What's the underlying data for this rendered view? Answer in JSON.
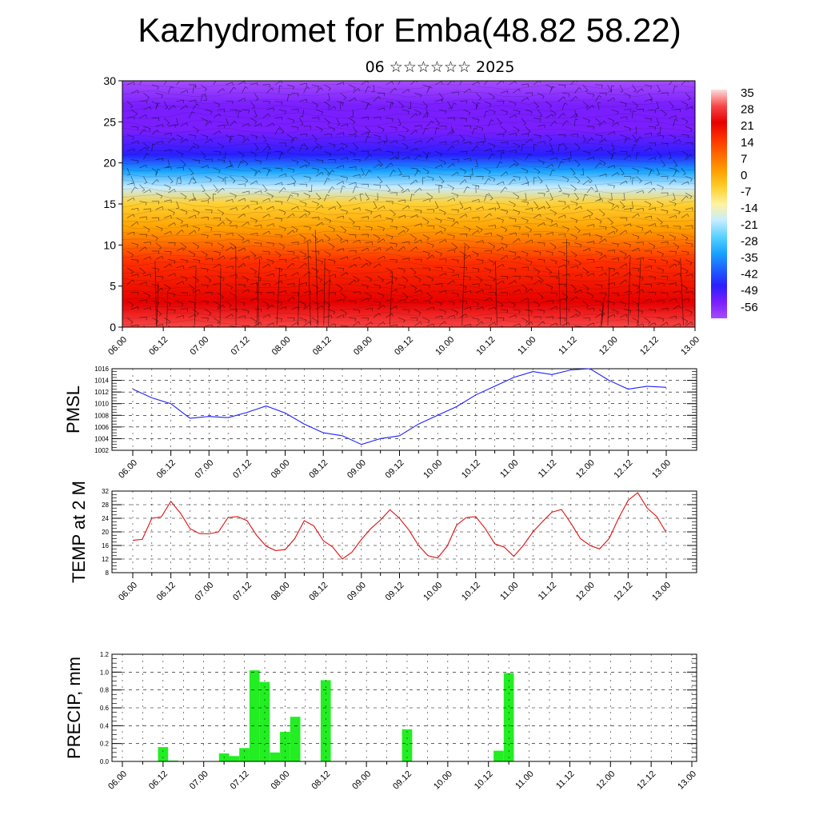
{
  "title": "Kazhydromet for Emba(48.82 58.22)",
  "subtitle": "06 ☆☆☆☆☆☆ 2025",
  "time_labels": [
    "06.00",
    "06.12",
    "07.00",
    "07.12",
    "08.00",
    "08.12",
    "09.00",
    "09.12",
    "10.00",
    "10.12",
    "11.00",
    "11.12",
    "12.00",
    "12.12",
    "13.00"
  ],
  "colors": {
    "pmsl_line": "#1f1fff",
    "temp_line": "#e01010",
    "precip_bar": "#22ee22"
  },
  "chart_data": [
    {
      "type": "heatmap",
      "title": "",
      "ylabel": "",
      "ylim": [
        0,
        30
      ],
      "y_ticks": [
        0,
        5,
        10,
        15,
        20,
        25,
        30
      ],
      "x_tick_labels": [
        "06.00",
        "06.12",
        "07.00",
        "07.12",
        "08.00",
        "08.12",
        "09.00",
        "09.12",
        "10.00",
        "10.12",
        "11.00",
        "11.12",
        "12.00",
        "12.12",
        "13.00"
      ],
      "colorbar": {
        "labels": [
          "35",
          "28",
          "21",
          "14",
          "7",
          "0",
          "-7",
          "-14",
          "-21",
          "-28",
          "-35",
          "-42",
          "-49",
          "-56"
        ],
        "colors": [
          "#fcdede",
          "#f84848",
          "#e60000",
          "#ff3000",
          "#ff6a00",
          "#ffa000",
          "#ffd030",
          "#fff3a0",
          "#c8ecff",
          "#58d2ff",
          "#18a4ff",
          "#1e60ff",
          "#2a1eff",
          "#7a1eff",
          "#a64cff"
        ]
      },
      "profile": [
        {
          "level": 0,
          "value": 33
        },
        {
          "level": 3,
          "value": 26
        },
        {
          "level": 8,
          "value": 14
        },
        {
          "level": 12,
          "value": 5
        },
        {
          "level": 15,
          "value": -8
        },
        {
          "level": 17,
          "value": -20
        },
        {
          "level": 19,
          "value": -32
        },
        {
          "level": 21,
          "value": -45
        },
        {
          "level": 24,
          "value": -58
        },
        {
          "level": 27,
          "value": -56
        },
        {
          "level": 30,
          "value": -60
        }
      ]
    },
    {
      "type": "line",
      "ylabel": "PMSL",
      "ylim": [
        1002,
        1016
      ],
      "y_ticks": [
        1002,
        1004,
        1006,
        1008,
        1010,
        1012,
        1014,
        1016
      ],
      "x_tick_labels": [
        "06.00",
        "06.12",
        "07.00",
        "07.12",
        "08.00",
        "08.12",
        "09.00",
        "09.12",
        "10.00",
        "10.12",
        "11.00",
        "11.12",
        "12.00",
        "12.12",
        "13.00"
      ],
      "x_range": [
        0,
        168
      ],
      "series": [
        {
          "x": [
            0,
            6,
            12,
            18,
            24,
            30,
            36,
            42,
            48,
            54,
            60,
            66,
            72,
            78,
            84,
            90,
            96,
            102,
            108,
            114,
            120,
            126,
            132,
            138,
            144,
            150,
            156,
            162,
            168
          ],
          "values": [
            1012.5,
            1011,
            1010,
            1007.5,
            1007.8,
            1007.6,
            1008.5,
            1009.6,
            1008.4,
            1006.5,
            1005,
            1004.5,
            1003,
            1004,
            1004.5,
            1006.5,
            1008,
            1009.5,
            1011.5,
            1013,
            1014.5,
            1015.5,
            1015,
            1015.8,
            1016,
            1014,
            1012.5,
            1013,
            1012.8
          ]
        }
      ]
    },
    {
      "type": "line",
      "ylabel": "TEMP at 2 M",
      "ylim": [
        8,
        32
      ],
      "y_ticks": [
        8,
        12,
        16,
        20,
        24,
        28,
        32
      ],
      "x_tick_labels": [
        "06.00",
        "06.12",
        "07.00",
        "07.12",
        "08.00",
        "08.12",
        "09.00",
        "09.12",
        "10.00",
        "10.12",
        "11.00",
        "11.12",
        "12.00",
        "12.12",
        "13.00"
      ],
      "x_range": [
        0,
        168
      ],
      "series": [
        {
          "x": [
            0,
            3,
            6,
            9,
            12,
            15,
            18,
            21,
            24,
            27,
            30,
            33,
            36,
            39,
            42,
            45,
            48,
            51,
            54,
            57,
            60,
            63,
            66,
            69,
            72,
            75,
            78,
            81,
            84,
            87,
            90,
            93,
            96,
            99,
            102,
            105,
            108,
            111,
            114,
            117,
            120,
            123,
            126,
            129,
            132,
            135,
            138,
            141,
            144,
            147,
            150,
            153,
            156,
            159,
            162,
            165,
            168
          ],
          "values": [
            17.5,
            17.8,
            24,
            24.4,
            29,
            25.5,
            21,
            19.5,
            19.4,
            20,
            24.2,
            24.5,
            23.3,
            19,
            15.8,
            14.5,
            14.8,
            18,
            23.3,
            21.8,
            17.4,
            15.5,
            12,
            14,
            17.8,
            21,
            23.5,
            26.5,
            24,
            20.5,
            16,
            13,
            12.3,
            15.8,
            22,
            24.2,
            24.5,
            21,
            16.5,
            15.5,
            12.8,
            16,
            20,
            23,
            25.8,
            26.6,
            22.5,
            18,
            16,
            15,
            18,
            24,
            29.3,
            31.5,
            27,
            24.5,
            19.8
          ]
        }
      ],
      "notes_series_end_x": 168
    },
    {
      "type": "bar",
      "ylabel": "PRECIP, mm",
      "ylim": [
        0,
        1.2
      ],
      "y_ticks": [
        0.0,
        0.2,
        0.4,
        0.6,
        0.8,
        1.0,
        1.2
      ],
      "y_tick_labels": [
        "0.0",
        "0.2",
        "0.4",
        "0.6",
        "0.8",
        "1.0",
        "1.2"
      ],
      "x_tick_labels": [
        "06.00",
        "06.12",
        "07.00",
        "07.12",
        "08.00",
        "08.12",
        "09.00",
        "09.12",
        "10.00",
        "10.12",
        "11.00",
        "11.12",
        "12.00",
        "12.12",
        "13.00"
      ],
      "x_range": [
        0,
        168
      ],
      "bar_width": 3,
      "bars": [
        {
          "x": 12,
          "value": 0.16
        },
        {
          "x": 15,
          "value": 0.01
        },
        {
          "x": 30,
          "value": 0.09
        },
        {
          "x": 33,
          "value": 0.06
        },
        {
          "x": 36,
          "value": 0.15
        },
        {
          "x": 39,
          "value": 1.02
        },
        {
          "x": 42,
          "value": 0.89
        },
        {
          "x": 45,
          "value": 0.1
        },
        {
          "x": 48,
          "value": 0.33
        },
        {
          "x": 51,
          "value": 0.5
        },
        {
          "x": 60,
          "value": 0.91
        },
        {
          "x": 84,
          "value": 0.36
        },
        {
          "x": 111,
          "value": 0.12
        },
        {
          "x": 114,
          "value": 0.99
        }
      ]
    }
  ]
}
